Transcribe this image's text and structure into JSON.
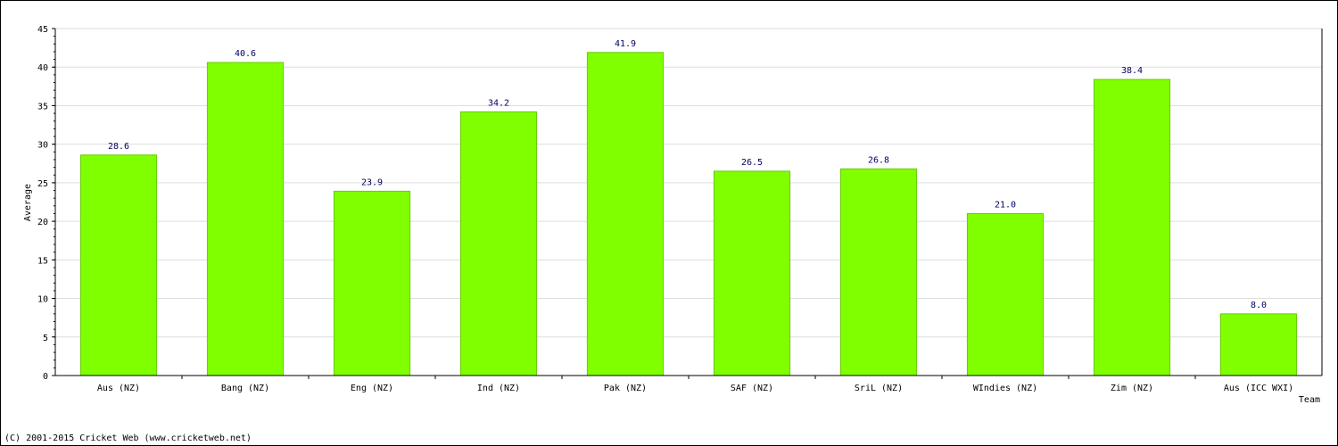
{
  "chart_data": {
    "type": "bar",
    "title": "",
    "xlabel": "Team",
    "ylabel": "Average",
    "ylim": [
      0,
      45
    ],
    "yticks": [
      0,
      5,
      10,
      15,
      20,
      25,
      30,
      35,
      40,
      45
    ],
    "grid": true,
    "categories": [
      "Aus (NZ)",
      "Bang (NZ)",
      "Eng (NZ)",
      "Ind (NZ)",
      "Pak (NZ)",
      "SAF (NZ)",
      "SriL (NZ)",
      "WIndies (NZ)",
      "Zim (NZ)",
      "Aus (ICC WXI)"
    ],
    "values": [
      28.6,
      40.6,
      23.9,
      34.2,
      41.9,
      26.5,
      26.8,
      21.0,
      38.4,
      8.0
    ],
    "value_labels": [
      "28.6",
      "40.6",
      "23.9",
      "34.2",
      "41.9",
      "26.5",
      "26.8",
      "21.0",
      "38.4",
      "8.0"
    ],
    "bar_color": "#80ff00",
    "bar_edge_color": "#66cc00",
    "value_label_color": "#000066",
    "grid_color": "#dddddd"
  },
  "footer": {
    "copyright": "(C) 2001-2015 Cricket Web (www.cricketweb.net)"
  }
}
